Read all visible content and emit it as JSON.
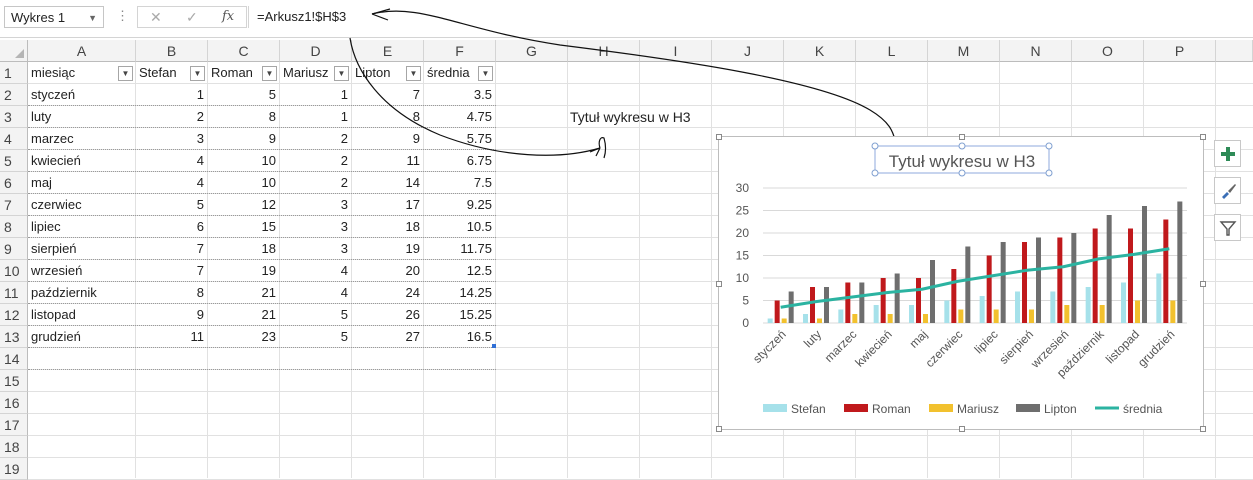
{
  "formula_bar": {
    "name_box": "Wykres 1",
    "formula": "=Arkusz1!$H$3",
    "cancel_icon": "✕",
    "enter_icon": "✓",
    "fx_label": "fx"
  },
  "columns": [
    "A",
    "B",
    "C",
    "D",
    "E",
    "F",
    "G",
    "H",
    "I",
    "J",
    "K",
    "L",
    "M",
    "N",
    "O",
    "P"
  ],
  "rows": [
    "1",
    "2",
    "3",
    "4",
    "5",
    "6",
    "7",
    "8",
    "9",
    "10",
    "11",
    "12",
    "13",
    "14",
    "15",
    "16",
    "17",
    "18",
    "19"
  ],
  "table": {
    "headers": [
      "miesiąc",
      "Stefan",
      "Roman",
      "Mariusz",
      "Lipton",
      "średnia"
    ],
    "rows": [
      [
        "styczeń",
        "1",
        "5",
        "1",
        "7",
        "3.5"
      ],
      [
        "luty",
        "2",
        "8",
        "1",
        "8",
        "4.75"
      ],
      [
        "marzec",
        "3",
        "9",
        "2",
        "9",
        "5.75"
      ],
      [
        "kwiecień",
        "4",
        "10",
        "2",
        "11",
        "6.75"
      ],
      [
        "maj",
        "4",
        "10",
        "2",
        "14",
        "7.5"
      ],
      [
        "czerwiec",
        "5",
        "12",
        "3",
        "17",
        "9.25"
      ],
      [
        "lipiec",
        "6",
        "15",
        "3",
        "18",
        "10.5"
      ],
      [
        "sierpień",
        "7",
        "18",
        "3",
        "19",
        "11.75"
      ],
      [
        "wrzesień",
        "7",
        "19",
        "4",
        "20",
        "12.5"
      ],
      [
        "październik",
        "8",
        "21",
        "4",
        "24",
        "14.25"
      ],
      [
        "listopad",
        "9",
        "21",
        "5",
        "26",
        "15.25"
      ],
      [
        "grudzień",
        "11",
        "23",
        "5",
        "27",
        "16.5"
      ]
    ]
  },
  "h3_text": "Tytuł wykresu w H3",
  "chart_data": {
    "type": "bar",
    "title": "Tytuł wykresu w H3",
    "categories": [
      "styczeń",
      "luty",
      "marzec",
      "kwiecień",
      "maj",
      "czerwiec",
      "lipiec",
      "sierpień",
      "wrzesień",
      "październik",
      "listopad",
      "grudzień"
    ],
    "series": [
      {
        "name": "Stefan",
        "kind": "bar",
        "color": "#a6e1ea",
        "values": [
          1,
          2,
          3,
          4,
          4,
          5,
          6,
          7,
          7,
          8,
          9,
          11
        ]
      },
      {
        "name": "Roman",
        "kind": "bar",
        "color": "#c0191c",
        "values": [
          5,
          8,
          9,
          10,
          10,
          12,
          15,
          18,
          19,
          21,
          21,
          23
        ]
      },
      {
        "name": "Mariusz",
        "kind": "bar",
        "color": "#f2c12e",
        "values": [
          1,
          1,
          2,
          2,
          2,
          3,
          3,
          3,
          4,
          4,
          5,
          5
        ]
      },
      {
        "name": "Lipton",
        "kind": "bar",
        "color": "#6e6e6e",
        "values": [
          7,
          8,
          9,
          11,
          14,
          17,
          18,
          19,
          20,
          24,
          26,
          27
        ]
      },
      {
        "name": "średnia",
        "kind": "line",
        "color": "#2bb3a1",
        "values": [
          3.5,
          4.75,
          5.75,
          6.75,
          7.5,
          9.25,
          10.5,
          11.75,
          12.5,
          14.25,
          15.25,
          16.5
        ]
      }
    ],
    "y_ticks": [
      "0",
      "5",
      "10",
      "15",
      "20",
      "25",
      "30"
    ],
    "ylim": [
      0,
      30
    ],
    "grid": true,
    "legend": "bottom"
  }
}
